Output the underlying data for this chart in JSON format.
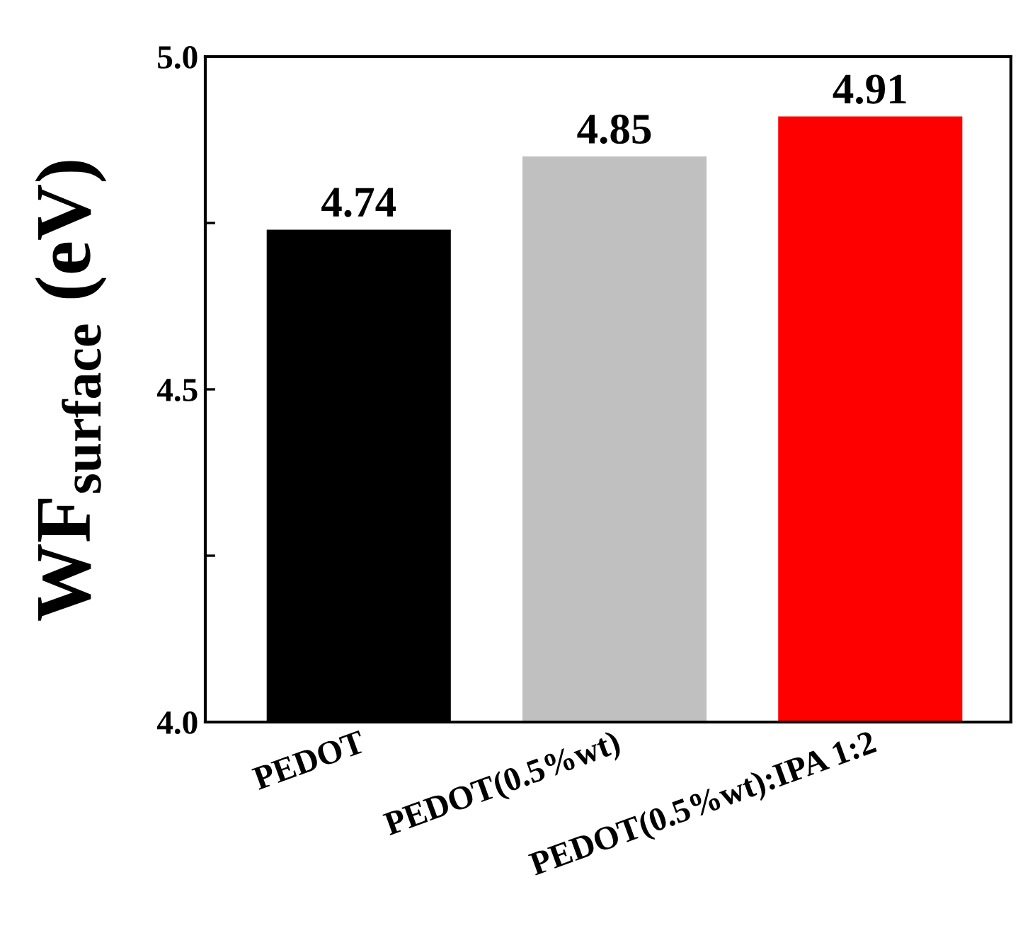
{
  "chart_data": {
    "type": "bar",
    "ylabel": "WF$_{surface}$ (eV)",
    "categories": [
      "PEDOT",
      "PEDOT(0.5%wt)",
      "PEDOT(0.5%wt):IPA 1:2"
    ],
    "values": [
      4.74,
      4.85,
      4.91
    ],
    "colors": [
      "#000000",
      "#c0c0c0",
      "#ff0000"
    ],
    "ylim": [
      4.0,
      5.0
    ],
    "yticks": [
      {
        "value": 4,
        "label": "4.0"
      },
      {
        "value": 4.25,
        "label": null
      },
      4.5,
      {
        "value": 4.75,
        "label": null
      },
      {
        "value": 5,
        "label": "5.0"
      }
    ],
    "data_labels": true,
    "grid": false,
    "legend": false
  }
}
